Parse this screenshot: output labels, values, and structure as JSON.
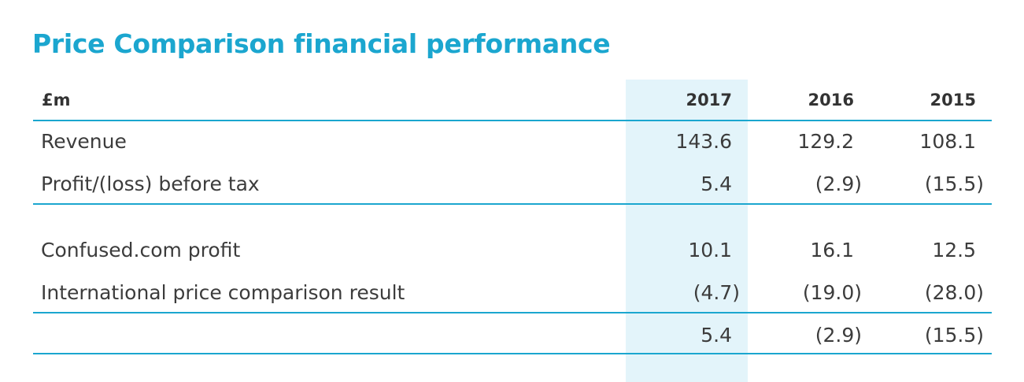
{
  "title": "Price Comparison financial performance",
  "colors": {
    "accent": "#1ba6cf",
    "highlight": "#e3f4fa",
    "text": "#3c3c3c"
  },
  "table": {
    "unit_label": "£m",
    "columns": [
      "2017",
      "2016",
      "2015"
    ],
    "highlighted_column": "2017",
    "sections": [
      {
        "rows": [
          {
            "label": "Revenue",
            "values": [
              "143.6",
              "129.2",
              "108.1"
            ]
          },
          {
            "label": "Profit/(loss) before tax",
            "values": [
              "5.4",
              "(2.9)",
              "(15.5)"
            ]
          }
        ]
      },
      {
        "rows": [
          {
            "label": "Confused.com profit",
            "values": [
              "10.1",
              "16.1",
              "12.5"
            ]
          },
          {
            "label": "International price comparison result",
            "values": [
              "(4.7)",
              "(19.0)",
              "(28.0)"
            ]
          }
        ]
      }
    ],
    "total_row": {
      "label": "",
      "values": [
        "5.4",
        "(2.9)",
        "(15.5)"
      ]
    }
  }
}
